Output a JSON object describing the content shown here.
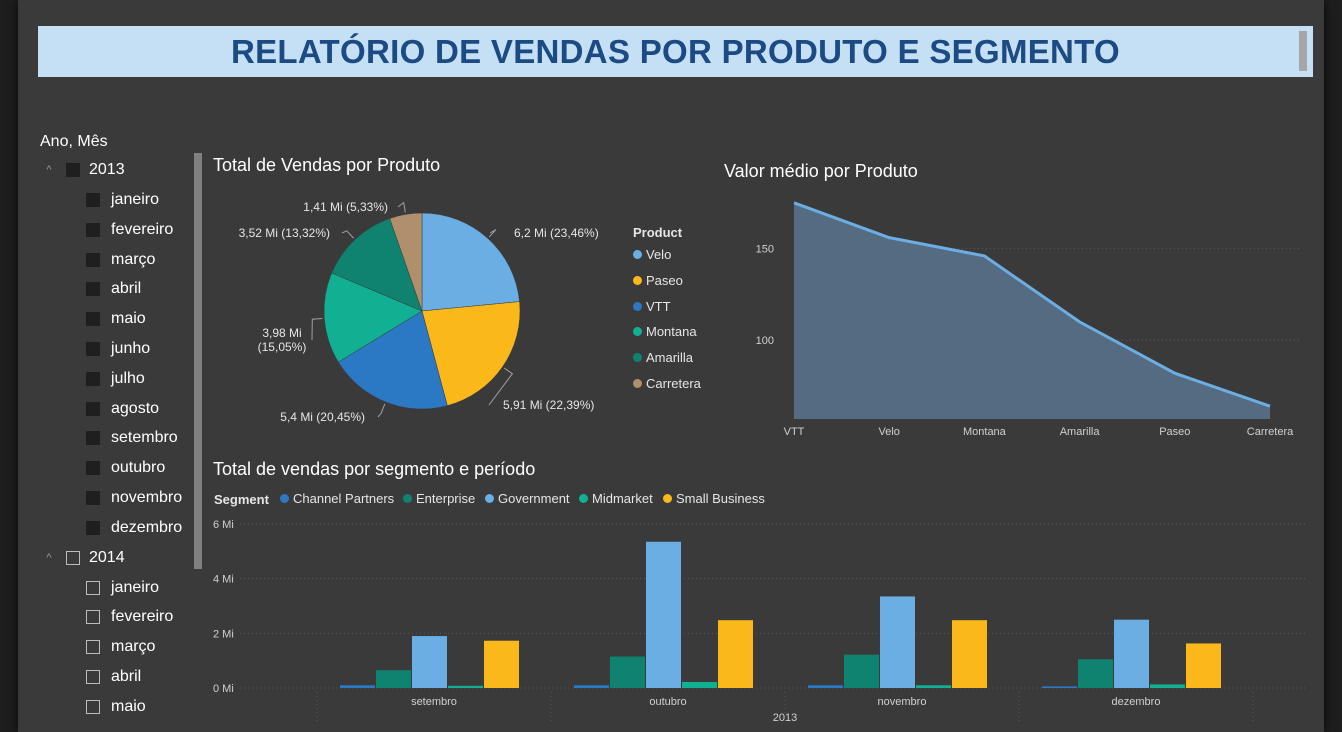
{
  "title": "RELATÓRIO DE VENDAS POR PRODUTO E SEGMENTO",
  "colors": {
    "accent_title": "#1b4b82",
    "title_bg": "#c5dff4",
    "background": "#3a3a3a",
    "velo": "#6baee3",
    "paseo": "#fbb81b",
    "vtt": "#2b78c4",
    "montana": "#11b093",
    "amarilla": "#108370",
    "carretera": "#b08f6d"
  },
  "slicer": {
    "header": "Ano, Mês",
    "years": [
      {
        "label": "2013",
        "checked": "filled",
        "months": [
          "janeiro",
          "fevereiro",
          "março",
          "abril",
          "maio",
          "junho",
          "julho",
          "agosto",
          "setembro",
          "outubro",
          "novembro",
          "dezembro"
        ]
      },
      {
        "label": "2014",
        "checked": "empty",
        "months": [
          "janeiro",
          "fevereiro",
          "março",
          "abril",
          "maio"
        ]
      }
    ]
  },
  "chart_data": [
    {
      "type": "pie",
      "title": "Total de Vendas por Produto",
      "legend_title": "Product",
      "legend_position": "right",
      "slices": [
        {
          "name": "Velo",
          "value": 6.2,
          "label": "6,2 Mi (23,46%)",
          "color": "#6baee3"
        },
        {
          "name": "Paseo",
          "value": 5.91,
          "label": "5,91 Mi (22,39%)",
          "color": "#fbb81b"
        },
        {
          "name": "VTT",
          "value": 5.4,
          "label": "5,4 Mi (20,45%)",
          "color": "#2b78c4"
        },
        {
          "name": "Montana",
          "value": 3.98,
          "label": "3,98 Mi (15,05%)",
          "color": "#11b093"
        },
        {
          "name": "Amarilla",
          "value": 3.52,
          "label": "3,52 Mi (13,32%)",
          "color": "#108370"
        },
        {
          "name": "Carretera",
          "value": 1.41,
          "label": "1,41 Mi (5,33%)",
          "color": "#b08f6d"
        }
      ]
    },
    {
      "type": "area",
      "title": "Valor médio por Produto",
      "categories": [
        "VTT",
        "Velo",
        "Montana",
        "Amarilla",
        "Paseo",
        "Carretera"
      ],
      "values": [
        175,
        156,
        146,
        110,
        82,
        64
      ],
      "ylim": [
        57,
        182
      ],
      "yticks": [
        100,
        150
      ],
      "ytick_labels": [
        "100",
        "150"
      ],
      "grid": true,
      "fill": "#556b82",
      "line": "#6baee3"
    },
    {
      "type": "bar",
      "title": "Total de vendas por segmento e período",
      "legend_title": "Segment",
      "legend_position": "top-left",
      "categories": [
        "setembro",
        "outubro",
        "novembro",
        "dezembro"
      ],
      "group_label": "2013",
      "ylim": [
        0,
        6
      ],
      "yticks": [
        0,
        2,
        4,
        6
      ],
      "ytick_labels": [
        "0 Mi",
        "2 Mi",
        "4 Mi",
        "6 Mi"
      ],
      "series": [
        {
          "name": "Channel Partners",
          "color": "#2b78c4",
          "values": [
            0.1,
            0.1,
            0.1,
            0.06
          ]
        },
        {
          "name": "Enterprise",
          "color": "#108370",
          "values": [
            0.65,
            1.15,
            1.22,
            1.05
          ]
        },
        {
          "name": "Government",
          "color": "#6baee3",
          "values": [
            1.9,
            5.35,
            3.35,
            2.5
          ]
        },
        {
          "name": "Midmarket",
          "color": "#11b093",
          "values": [
            0.08,
            0.22,
            0.1,
            0.13
          ]
        },
        {
          "name": "Small Business",
          "color": "#fbb81b",
          "values": [
            1.73,
            2.48,
            2.48,
            1.63
          ]
        }
      ]
    }
  ]
}
